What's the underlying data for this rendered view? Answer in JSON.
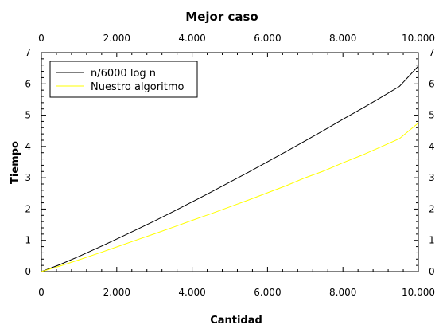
{
  "chart_data": {
    "type": "line",
    "title": "Mejor caso",
    "xlabel": "Cantidad",
    "ylabel": "Tiempo",
    "xlim": [
      0,
      10000
    ],
    "ylim": [
      0,
      7
    ],
    "x_ticks": [
      0,
      2000,
      4000,
      6000,
      8000,
      10000
    ],
    "x_tick_labels": [
      "0",
      "2.000",
      "4.000",
      "6.000",
      "8.000",
      "10.000"
    ],
    "y_ticks": [
      0,
      1,
      2,
      3,
      4,
      5,
      6,
      7
    ],
    "y_tick_labels": [
      "0",
      "1",
      "2",
      "3",
      "4",
      "5",
      "6",
      "7"
    ],
    "grid": false,
    "legend_position": "top-left",
    "x": [
      0,
      500,
      1000,
      1500,
      2000,
      2500,
      3000,
      3500,
      4000,
      4500,
      5000,
      5500,
      6000,
      6500,
      7000,
      7500,
      8000,
      8500,
      9000,
      9500,
      10000
    ],
    "series": [
      {
        "name": "n/6000 log n",
        "color": "#000000",
        "values": [
          0,
          0.23,
          0.49,
          0.76,
          1.04,
          1.33,
          1.62,
          1.92,
          2.23,
          2.54,
          2.86,
          3.18,
          3.51,
          3.84,
          4.18,
          4.52,
          4.87,
          5.21,
          5.56,
          5.92,
          6.57
        ]
      },
      {
        "name": "Nuestro algoritmo",
        "color": "#ffff00",
        "values": [
          0,
          0.18,
          0.38,
          0.58,
          0.79,
          1.0,
          1.21,
          1.42,
          1.64,
          1.85,
          2.07,
          2.29,
          2.52,
          2.75,
          3.0,
          3.22,
          3.48,
          3.72,
          3.98,
          4.25,
          4.75
        ]
      }
    ]
  }
}
